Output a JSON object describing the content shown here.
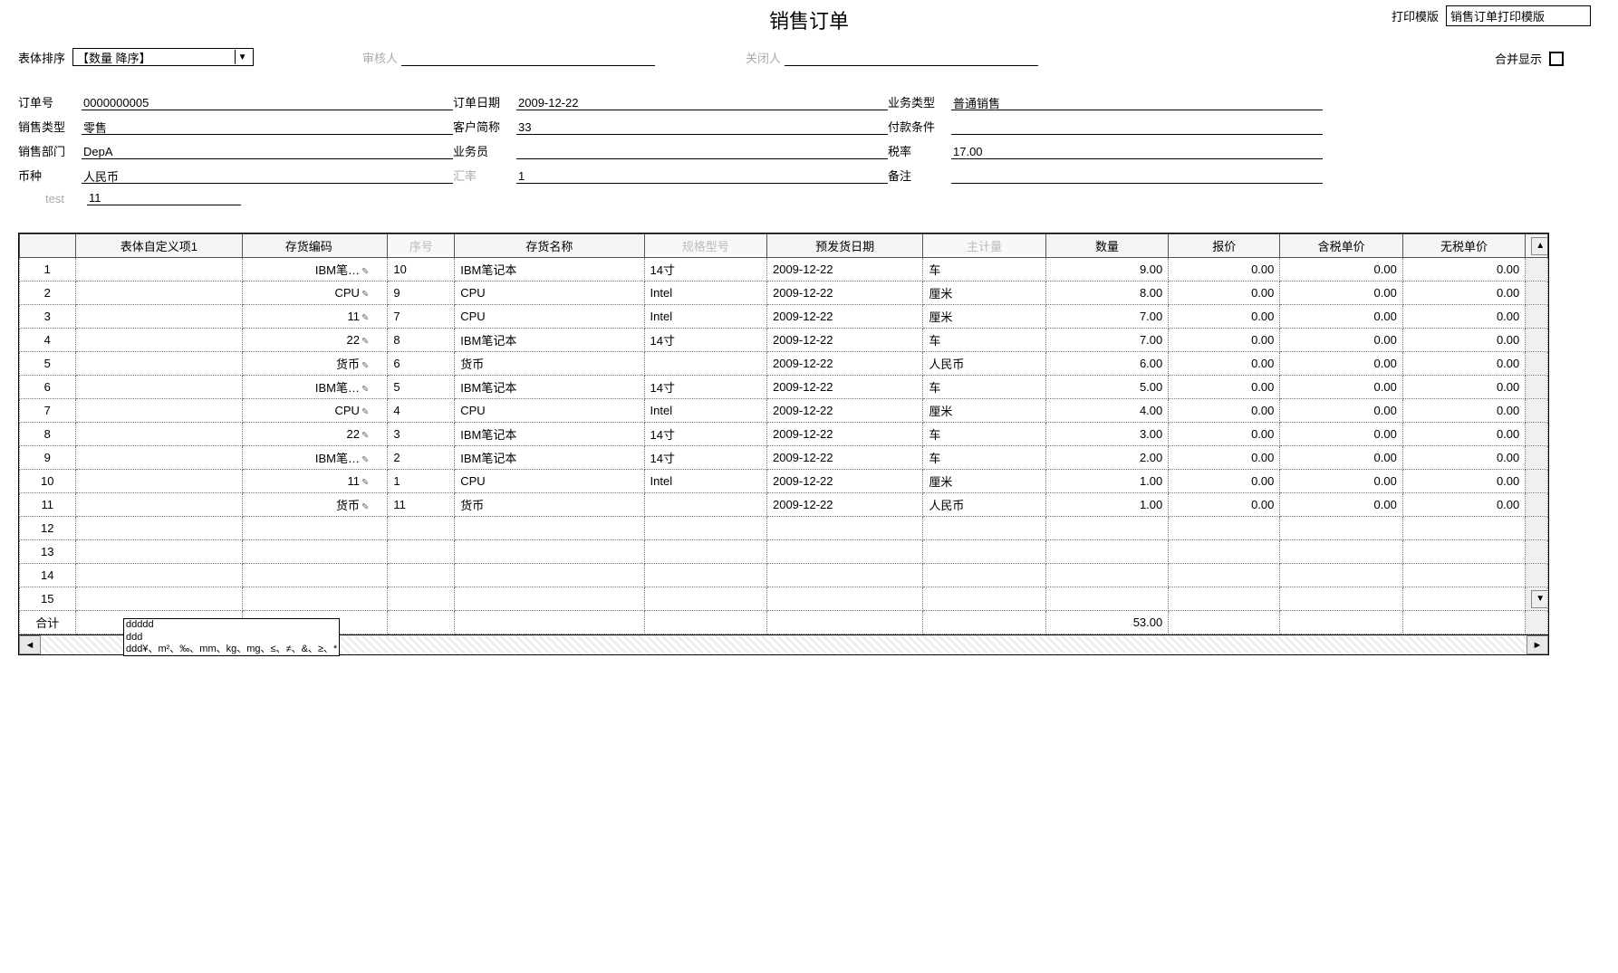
{
  "header": {
    "page_title": "销售订单",
    "print_template_label": "打印模版",
    "print_template_value": "销售订单打印模版",
    "sort_label": "表体排序",
    "sort_value": "【数量 降序】",
    "reviewer_label": "审核人",
    "reviewer_value": "",
    "closer_label": "关闭人",
    "closer_value": "",
    "merge_label": "合并显示"
  },
  "form": {
    "rows": [
      [
        {
          "label": "订单号",
          "value": "0000000005"
        },
        {
          "label": "订单日期",
          "value": "2009-12-22"
        },
        {
          "label": "业务类型",
          "value": "普通销售"
        }
      ],
      [
        {
          "label": "销售类型",
          "value": "零售"
        },
        {
          "label": "客户简称",
          "value": "33"
        },
        {
          "label": "付款条件",
          "value": ""
        }
      ],
      [
        {
          "label": "销售部门",
          "value": "DepA"
        },
        {
          "label": "业务员",
          "value": ""
        },
        {
          "label": "税率",
          "value": "17.00"
        }
      ],
      [
        {
          "label": "币种",
          "value": "人民币"
        },
        {
          "label": "汇率",
          "value": "1",
          "grey_label": true
        },
        {
          "label": "备注",
          "value": ""
        }
      ]
    ],
    "test_label": "test",
    "test_value": "11"
  },
  "grid": {
    "columns": [
      {
        "key": "rownum",
        "label": "",
        "cls": "col-rownum"
      },
      {
        "key": "custom",
        "label": "表体自定义项1",
        "cls": "col-custom"
      },
      {
        "key": "code",
        "label": "存货编码",
        "cls": "col-code"
      },
      {
        "key": "seq",
        "label": "序号",
        "cls": "col-seq",
        "grey": true
      },
      {
        "key": "name",
        "label": "存货名称",
        "cls": "col-name"
      },
      {
        "key": "spec",
        "label": "规格型号",
        "cls": "col-spec",
        "grey": true
      },
      {
        "key": "date",
        "label": "预发货日期",
        "cls": "col-date"
      },
      {
        "key": "unit",
        "label": "主计量",
        "cls": "col-unit",
        "grey": true
      },
      {
        "key": "qty",
        "label": "数量",
        "cls": "col-qty"
      },
      {
        "key": "price",
        "label": "报价",
        "cls": "col-price"
      },
      {
        "key": "taxprice",
        "label": "含税单价",
        "cls": "col-taxprice"
      },
      {
        "key": "notaxprice",
        "label": "无税单价",
        "cls": "col-notaxprice"
      }
    ],
    "rows": [
      {
        "rownum": "1",
        "custom": "",
        "code": "IBM笔…",
        "seq": "10",
        "name": "IBM笔记本",
        "spec": "14寸",
        "date": "2009-12-22",
        "unit": "车",
        "qty": "9.00",
        "price": "0.00",
        "taxprice": "0.00",
        "notaxprice": "0.00"
      },
      {
        "rownum": "2",
        "custom": "",
        "code": "CPU",
        "seq": "9",
        "name": "CPU",
        "spec": "Intel",
        "date": "2009-12-22",
        "unit": "厘米",
        "qty": "8.00",
        "price": "0.00",
        "taxprice": "0.00",
        "notaxprice": "0.00"
      },
      {
        "rownum": "3",
        "custom": "",
        "code": "11",
        "seq": "7",
        "name": "CPU",
        "spec": "Intel",
        "date": "2009-12-22",
        "unit": "厘米",
        "qty": "7.00",
        "price": "0.00",
        "taxprice": "0.00",
        "notaxprice": "0.00"
      },
      {
        "rownum": "4",
        "custom": "",
        "code": "22",
        "seq": "8",
        "name": "IBM笔记本",
        "spec": "14寸",
        "date": "2009-12-22",
        "unit": "车",
        "qty": "7.00",
        "price": "0.00",
        "taxprice": "0.00",
        "notaxprice": "0.00"
      },
      {
        "rownum": "5",
        "custom": "",
        "code": "货币",
        "seq": "6",
        "name": "货币",
        "spec": "",
        "date": "2009-12-22",
        "unit": "人民币",
        "qty": "6.00",
        "price": "0.00",
        "taxprice": "0.00",
        "notaxprice": "0.00"
      },
      {
        "rownum": "6",
        "custom": "",
        "code": "IBM笔…",
        "seq": "5",
        "name": "IBM笔记本",
        "spec": "14寸",
        "date": "2009-12-22",
        "unit": "车",
        "qty": "5.00",
        "price": "0.00",
        "taxprice": "0.00",
        "notaxprice": "0.00"
      },
      {
        "rownum": "7",
        "custom": "",
        "code": "CPU",
        "seq": "4",
        "name": "CPU",
        "spec": "Intel",
        "date": "2009-12-22",
        "unit": "厘米",
        "qty": "4.00",
        "price": "0.00",
        "taxprice": "0.00",
        "notaxprice": "0.00"
      },
      {
        "rownum": "8",
        "custom": "",
        "code": "22",
        "seq": "3",
        "name": "IBM笔记本",
        "spec": "14寸",
        "date": "2009-12-22",
        "unit": "车",
        "qty": "3.00",
        "price": "0.00",
        "taxprice": "0.00",
        "notaxprice": "0.00"
      },
      {
        "rownum": "9",
        "custom": "",
        "code": "IBM笔…",
        "seq": "2",
        "name": "IBM笔记本",
        "spec": "14寸",
        "date": "2009-12-22",
        "unit": "车",
        "qty": "2.00",
        "price": "0.00",
        "taxprice": "0.00",
        "notaxprice": "0.00"
      },
      {
        "rownum": "10",
        "custom": "",
        "code": "11",
        "seq": "1",
        "name": "CPU",
        "spec": "Intel",
        "date": "2009-12-22",
        "unit": "厘米",
        "qty": "1.00",
        "price": "0.00",
        "taxprice": "0.00",
        "notaxprice": "0.00"
      },
      {
        "rownum": "11",
        "custom": "",
        "code": "货币",
        "seq": "11",
        "name": "货币",
        "spec": "",
        "date": "2009-12-22",
        "unit": "人民币",
        "qty": "1.00",
        "price": "0.00",
        "taxprice": "0.00",
        "notaxprice": "0.00"
      },
      {
        "rownum": "12",
        "custom": "",
        "code": "",
        "seq": "",
        "name": "",
        "spec": "",
        "date": "",
        "unit": "",
        "qty": "",
        "price": "",
        "taxprice": "",
        "notaxprice": ""
      },
      {
        "rownum": "13",
        "custom": "",
        "code": "",
        "seq": "",
        "name": "",
        "spec": "",
        "date": "",
        "unit": "",
        "qty": "",
        "price": "",
        "taxprice": "",
        "notaxprice": ""
      },
      {
        "rownum": "14",
        "custom": "",
        "code": "",
        "seq": "",
        "name": "",
        "spec": "",
        "date": "",
        "unit": "",
        "qty": "",
        "price": "",
        "taxprice": "",
        "notaxprice": ""
      },
      {
        "rownum": "15",
        "custom": "",
        "code": "",
        "seq": "",
        "name": "",
        "spec": "",
        "date": "",
        "unit": "",
        "qty": "",
        "price": "",
        "taxprice": "",
        "notaxprice": ""
      }
    ],
    "sum_label": "合计",
    "sum_qty": "53.00",
    "stamp_line1": "ddddd",
    "stamp_line2": "ddd",
    "stamp_line3": "ddd¥、m²、‰、mm、kg、mg、≤、≠、&、≥、*"
  }
}
